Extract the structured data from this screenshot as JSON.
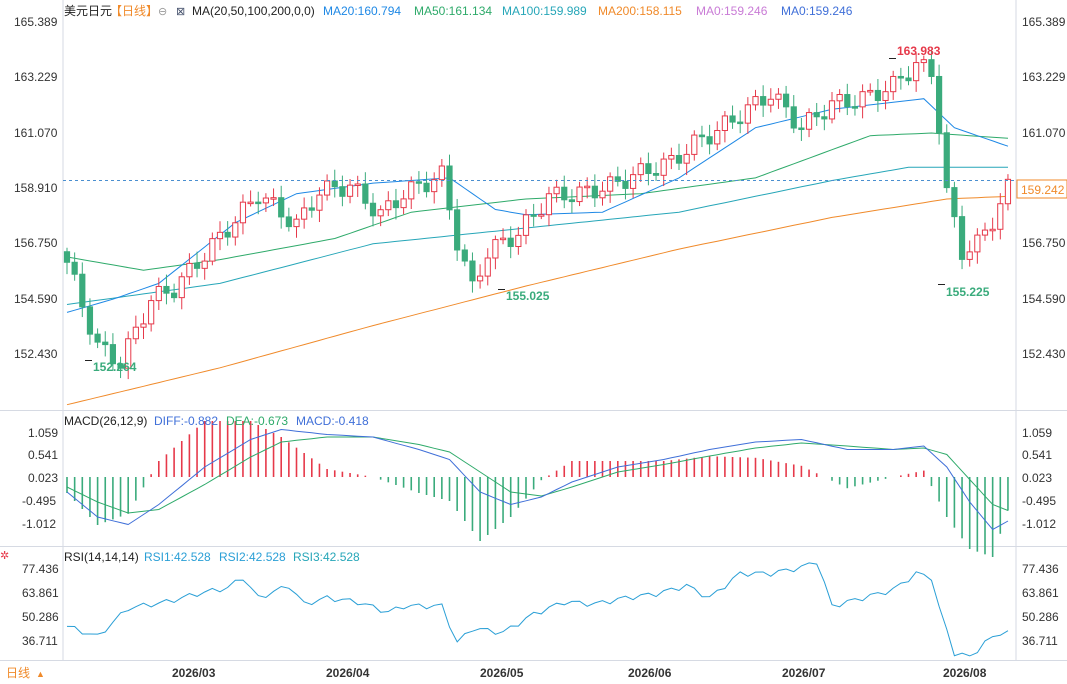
{
  "header": {
    "symbol": "美元日元",
    "period_tag": "【日线】",
    "ma_label": "MA(20,50,100,200,0,0)",
    "ma20": "MA20:160.794",
    "ma50": "MA50:161.134",
    "ma100": "MA100:159.989",
    "ma200": "MA200:158.115",
    "ma0a": "MA0:159.246",
    "ma0b": "MA0:159.246"
  },
  "colors": {
    "up": "#e6394a",
    "down": "#3aab7c",
    "ma20": "#1e88e5",
    "ma50": "#2eaa6a",
    "ma100": "#26a6b8",
    "ma200": "#f08a2a",
    "ma0": "#c97bd6",
    "dif": "#3f6fd8",
    "dea": "#2eaa6a",
    "rsi": "#2a9fd6",
    "current_price": "#f08a2a",
    "high_label": "#e6394a",
    "low_label": "#3aab7c"
  },
  "price_axis": {
    "ticks": [
      "165.389",
      "163.229",
      "161.070",
      "158.910",
      "156.750",
      "154.590",
      "152.430"
    ],
    "current_price": "159.242"
  },
  "annotations": {
    "high": "163.983",
    "low1": "152.264",
    "low2": "155.025",
    "low3": "155.225"
  },
  "macd_header": {
    "label": "MACD(26,12,9)",
    "diff": "DIFF:-0.882",
    "dea": "DEA:-0.673",
    "macd": "MACD:-0.418"
  },
  "macd_axis": {
    "ticks": [
      "1.059",
      "0.541",
      "0.023",
      "-0.495",
      "-1.012"
    ]
  },
  "rsi_header": {
    "label": "RSI(14,14,14)",
    "rsi1": "RSI1:42.528",
    "rsi2": "RSI2:42.528",
    "rsi3": "RSI3:42.528"
  },
  "rsi_axis": {
    "ticks": [
      "77.436",
      "63.861",
      "50.286",
      "36.711"
    ]
  },
  "x_axis": {
    "labels": [
      "2026/03",
      "2026/04",
      "2026/05",
      "2026/06",
      "2026/07",
      "2026/08"
    ]
  },
  "footer": {
    "period": "日线"
  },
  "chart_data": {
    "type": "candlestick",
    "price_range": [
      150.8,
      165.85
    ],
    "close_key": [
      [
        0,
        156.4
      ],
      [
        4,
        153.2
      ],
      [
        7,
        152.6
      ],
      [
        11,
        155.0
      ],
      [
        14,
        155.4
      ],
      [
        18,
        156.7
      ],
      [
        22,
        158.0
      ],
      [
        25,
        159.0
      ],
      [
        30,
        157.8
      ],
      [
        33,
        159.1
      ],
      [
        37,
        159.3
      ],
      [
        41,
        158.2
      ],
      [
        44,
        159.0
      ],
      [
        49,
        159.7
      ],
      [
        51,
        157.2
      ],
      [
        53,
        155.4
      ],
      [
        55,
        156.8
      ],
      [
        59,
        157.5
      ],
      [
        63,
        158.9
      ],
      [
        67,
        159.0
      ],
      [
        71,
        159.3
      ],
      [
        75,
        159.8
      ],
      [
        79,
        160.2
      ],
      [
        82,
        160.9
      ],
      [
        85,
        161.4
      ],
      [
        89,
        162.2
      ],
      [
        92,
        162.8
      ],
      [
        96,
        161.5
      ],
      [
        100,
        162.4
      ],
      [
        104,
        162.6
      ],
      [
        108,
        163.1
      ],
      [
        111,
        163.9
      ],
      [
        113,
        163.6
      ],
      [
        114,
        161.6
      ],
      [
        115,
        159.0
      ],
      [
        117,
        156.8
      ],
      [
        119,
        157.1
      ],
      [
        121,
        158.0
      ],
      [
        123,
        159.2
      ]
    ],
    "ma200_key": [
      [
        0,
        151.0
      ],
      [
        20,
        152.4
      ],
      [
        40,
        154.0
      ],
      [
        60,
        155.5
      ],
      [
        80,
        156.9
      ],
      [
        100,
        158.1
      ],
      [
        115,
        158.8
      ],
      [
        123,
        158.9
      ]
    ],
    "ma100_key": [
      [
        0,
        154.8
      ],
      [
        20,
        155.6
      ],
      [
        40,
        157.1
      ],
      [
        60,
        157.7
      ],
      [
        80,
        158.3
      ],
      [
        100,
        159.5
      ],
      [
        110,
        160.0
      ],
      [
        123,
        160.0
      ]
    ],
    "ma50_key": [
      [
        0,
        156.6
      ],
      [
        10,
        156.1
      ],
      [
        20,
        156.5
      ],
      [
        35,
        157.3
      ],
      [
        45,
        158.3
      ],
      [
        60,
        158.8
      ],
      [
        75,
        159.0
      ],
      [
        90,
        159.6
      ],
      [
        105,
        161.2
      ],
      [
        113,
        161.3
      ],
      [
        123,
        161.1
      ]
    ],
    "ma20_key": [
      [
        0,
        154.5
      ],
      [
        6,
        155.0
      ],
      [
        12,
        155.6
      ],
      [
        22,
        157.9
      ],
      [
        30,
        159.0
      ],
      [
        40,
        159.4
      ],
      [
        50,
        159.6
      ],
      [
        56,
        158.4
      ],
      [
        60,
        158.2
      ],
      [
        70,
        158.3
      ],
      [
        80,
        159.6
      ],
      [
        90,
        161.5
      ],
      [
        100,
        162.2
      ],
      [
        112,
        162.6
      ],
      [
        116,
        161.5
      ],
      [
        123,
        160.8
      ]
    ],
    "macd_range": [
      -1.38,
      1.28
    ],
    "dif_key": [
      [
        0,
        -0.3
      ],
      [
        4,
        -0.8
      ],
      [
        8,
        -0.95
      ],
      [
        12,
        -0.55
      ],
      [
        18,
        0.2
      ],
      [
        24,
        0.75
      ],
      [
        28,
        0.95
      ],
      [
        34,
        0.85
      ],
      [
        40,
        0.8
      ],
      [
        46,
        0.55
      ],
      [
        50,
        0.35
      ],
      [
        54,
        -0.3
      ],
      [
        58,
        -0.55
      ],
      [
        62,
        -0.4
      ],
      [
        66,
        -0.1
      ],
      [
        72,
        0.2
      ],
      [
        78,
        0.35
      ],
      [
        84,
        0.55
      ],
      [
        90,
        0.7
      ],
      [
        96,
        0.75
      ],
      [
        102,
        0.55
      ],
      [
        108,
        0.55
      ],
      [
        112,
        0.62
      ],
      [
        115,
        0.2
      ],
      [
        118,
        -0.5
      ],
      [
        121,
        -1.05
      ],
      [
        123,
        -0.88
      ]
    ],
    "dea_key": [
      [
        0,
        -0.2
      ],
      [
        4,
        -0.5
      ],
      [
        8,
        -0.72
      ],
      [
        12,
        -0.65
      ],
      [
        18,
        -0.15
      ],
      [
        24,
        0.4
      ],
      [
        28,
        0.7
      ],
      [
        34,
        0.8
      ],
      [
        40,
        0.8
      ],
      [
        46,
        0.65
      ],
      [
        50,
        0.5
      ],
      [
        54,
        0.1
      ],
      [
        58,
        -0.3
      ],
      [
        62,
        -0.38
      ],
      [
        66,
        -0.2
      ],
      [
        72,
        0.1
      ],
      [
        78,
        0.25
      ],
      [
        84,
        0.42
      ],
      [
        90,
        0.58
      ],
      [
        96,
        0.68
      ],
      [
        102,
        0.62
      ],
      [
        108,
        0.55
      ],
      [
        112,
        0.58
      ],
      [
        115,
        0.45
      ],
      [
        118,
        -0.05
      ],
      [
        121,
        -0.55
      ],
      [
        123,
        -0.67
      ]
    ],
    "rsi_range": [
      29.5,
      84.0
    ],
    "rsi_key": [
      [
        0,
        46
      ],
      [
        4,
        41
      ],
      [
        8,
        55
      ],
      [
        13,
        58
      ],
      [
        17,
        62
      ],
      [
        21,
        65
      ],
      [
        23,
        70
      ],
      [
        25,
        60
      ],
      [
        29,
        66
      ],
      [
        31,
        57
      ],
      [
        34,
        60
      ],
      [
        38,
        58
      ],
      [
        42,
        53
      ],
      [
        44,
        56
      ],
      [
        49,
        56
      ],
      [
        51,
        38
      ],
      [
        53,
        45
      ],
      [
        57,
        43
      ],
      [
        61,
        52
      ],
      [
        65,
        58
      ],
      [
        69,
        57
      ],
      [
        73,
        60
      ],
      [
        77,
        62
      ],
      [
        81,
        66
      ],
      [
        84,
        60
      ],
      [
        88,
        72
      ],
      [
        92,
        72
      ],
      [
        96,
        75
      ],
      [
        98,
        78
      ],
      [
        100,
        56
      ],
      [
        104,
        60
      ],
      [
        108,
        64
      ],
      [
        111,
        72
      ],
      [
        113,
        70
      ],
      [
        114,
        55
      ],
      [
        116,
        33
      ],
      [
        118,
        31
      ],
      [
        120,
        38
      ],
      [
        122,
        43
      ],
      [
        123,
        43
      ]
    ]
  }
}
